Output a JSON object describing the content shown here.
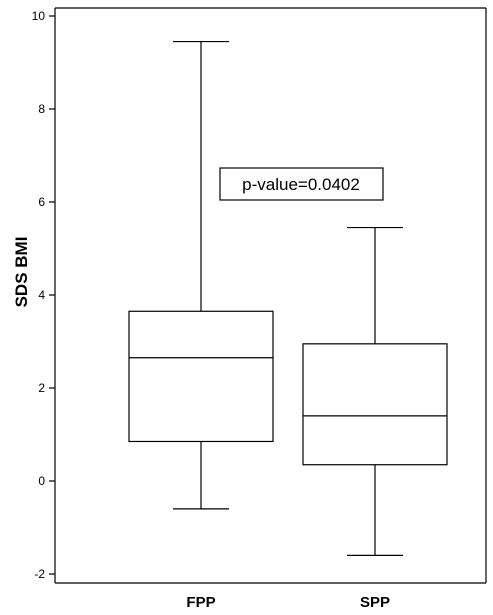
{
  "chart_data": {
    "type": "box",
    "title": "",
    "xlabel": "",
    "ylabel": "SDS BMI",
    "ylim": [
      -2,
      10
    ],
    "yticks": [
      "-2",
      "0",
      "2",
      "4",
      "6",
      "8",
      "10"
    ],
    "grid": false,
    "categories": [
      "FPP",
      "SPP"
    ],
    "boxes": [
      {
        "category": "FPP",
        "min": -0.6,
        "q1": 0.85,
        "median": 2.65,
        "q3": 3.65,
        "max": 9.45
      },
      {
        "category": "SPP",
        "min": -1.6,
        "q1": 0.35,
        "median": 1.4,
        "q3": 2.95,
        "max": 5.45
      }
    ],
    "annotations": [
      {
        "text": "p-value=0.0402"
      }
    ]
  }
}
